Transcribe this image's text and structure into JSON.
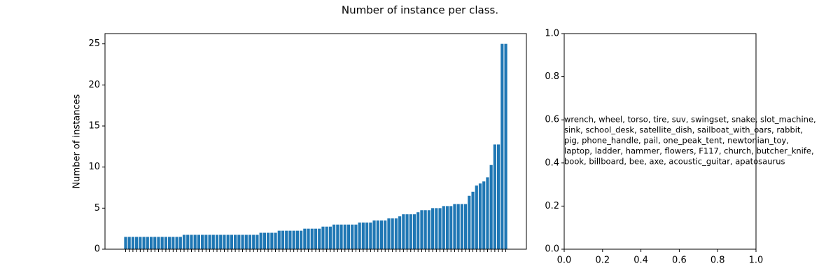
{
  "title": "Number of instance per class.",
  "chart_data": [
    {
      "type": "bar",
      "ylabel": "Number of instances",
      "color": "#1f77b4",
      "categories": [
        null,
        null,
        null,
        null,
        null,
        null,
        null,
        null,
        null,
        null,
        null,
        null,
        null,
        null,
        null,
        null,
        null,
        null,
        null,
        null,
        null,
        null,
        null,
        null,
        null,
        null,
        null,
        null,
        null,
        null,
        null,
        null,
        null,
        null,
        null,
        null,
        null,
        null,
        null,
        null,
        null,
        null,
        null,
        null,
        null,
        null,
        null,
        null,
        null,
        null,
        null,
        null,
        null,
        null,
        null,
        null,
        null,
        null,
        null,
        null,
        null,
        null,
        null,
        null,
        null,
        null,
        null,
        null,
        null,
        null,
        null,
        null,
        null,
        null,
        null,
        null,
        null,
        null,
        null,
        null,
        null,
        null,
        null,
        null,
        null,
        null,
        null,
        null,
        null,
        null,
        null,
        null,
        null,
        null,
        null,
        null,
        null,
        null,
        null,
        null,
        null,
        null,
        null,
        null,
        null
      ],
      "values": [
        1.5,
        1.5,
        1.5,
        1.5,
        1.5,
        1.5,
        1.5,
        1.5,
        1.5,
        1.5,
        1.5,
        1.5,
        1.5,
        1.5,
        1.5,
        1.5,
        1.75,
        1.75,
        1.75,
        1.75,
        1.75,
        1.75,
        1.75,
        1.75,
        1.75,
        1.75,
        1.75,
        1.75,
        1.75,
        1.75,
        1.75,
        1.75,
        1.75,
        1.75,
        1.75,
        1.75,
        1.75,
        2,
        2,
        2,
        2,
        2,
        2.25,
        2.25,
        2.25,
        2.25,
        2.25,
        2.25,
        2.25,
        2.5,
        2.5,
        2.5,
        2.5,
        2.5,
        2.75,
        2.75,
        2.75,
        3,
        3,
        3,
        3,
        3,
        3,
        3,
        3.25,
        3.25,
        3.25,
        3.25,
        3.5,
        3.5,
        3.5,
        3.5,
        3.75,
        3.75,
        3.75,
        4,
        4.25,
        4.25,
        4.25,
        4.25,
        4.5,
        4.75,
        4.75,
        4.75,
        5,
        5,
        5,
        5.25,
        5.25,
        5.25,
        5.5,
        5.5,
        5.5,
        5.5,
        6.5,
        7,
        7.75,
        8,
        8.25,
        8.75,
        10.25,
        12.75,
        12.75,
        25,
        25
      ],
      "ylim": [
        0,
        26.25
      ],
      "yticks": [
        0,
        5,
        10,
        15,
        20,
        25
      ]
    },
    {
      "type": "text",
      "xlim": [
        0,
        1
      ],
      "ylim": [
        0,
        1
      ],
      "xticks": [
        {
          "value": 0,
          "label": "0.0"
        },
        {
          "value": 0.2,
          "label": "0.2"
        },
        {
          "value": 0.4,
          "label": "0.4"
        },
        {
          "value": 0.6,
          "label": "0.6"
        },
        {
          "value": 0.8,
          "label": "0.8"
        },
        {
          "value": 1,
          "label": "1.0"
        }
      ],
      "yticks": [
        {
          "value": 0,
          "label": "0.0"
        },
        {
          "value": 0.2,
          "label": "0.2"
        },
        {
          "value": 0.4,
          "label": "0.4"
        },
        {
          "value": 0.6,
          "label": "0.6"
        },
        {
          "value": 0.8,
          "label": "0.8"
        },
        {
          "value": 1,
          "label": "1.0"
        }
      ],
      "annotation_lines": [
        "wrench, wheel, torso, tire, suv, swingset, snake, slot_machine,",
        "sink, school_desk, satellite_dish, sailboat_with_oars, rabbit,",
        "pig, phone_handle, pail, one_peak_tent, newtonian_toy,",
        "laptop, ladder, hammer, flowers, F117, church, butcher_knife,",
        "book, billboard, bee, axe, acoustic_guitar, apatosaurus"
      ]
    }
  ]
}
